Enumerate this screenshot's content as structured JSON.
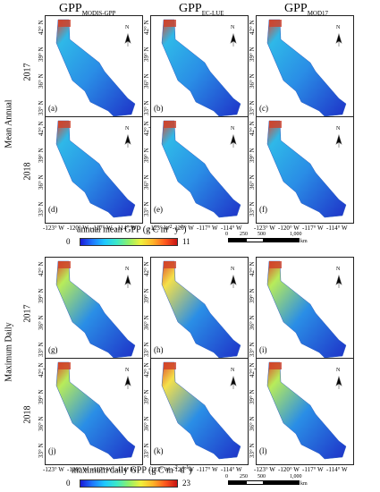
{
  "columns": [
    {
      "base": "GPP",
      "sub": "MODIS-GPP"
    },
    {
      "base": "GPP",
      "sub": "EC-LUE"
    },
    {
      "base": "GPP",
      "sub": "MOD17"
    }
  ],
  "sections": [
    {
      "label": "Mean Annual",
      "years": [
        "2017",
        "2018"
      ],
      "panels": [
        [
          "(a)",
          "(b)",
          "(c)"
        ],
        [
          "(d)",
          "(e)",
          "(f)"
        ]
      ]
    },
    {
      "label": "Maximum Daily",
      "years": [
        "2017",
        "2018"
      ],
      "panels": [
        [
          "(g)",
          "(h)",
          "(i)"
        ],
        [
          "(j)",
          "(k)",
          "(l)"
        ]
      ]
    }
  ],
  "lat_ticks": [
    "42° N",
    "39° N",
    "36° N",
    "33° N"
  ],
  "lon_ticks": [
    "-123° W",
    "-120° W",
    "-117° W",
    "-114° W"
  ],
  "north_label": "N",
  "colorbars": [
    {
      "title_pre": "annual mean GPP (g C m",
      "title_sup1": "-2",
      "title_mid": " y",
      "title_sup2": "-1",
      "title_post": ")",
      "min": "0",
      "max": "11"
    },
    {
      "title_pre": "maximum daily GPP (g C m",
      "title_sup1": "-2",
      "title_mid": " d",
      "title_sup2": "-1",
      "title_post": ")",
      "min": "0",
      "max": "23"
    }
  ],
  "scalebar": {
    "labels": [
      "0",
      "250",
      "500",
      "1,000"
    ],
    "unit": "km"
  }
}
